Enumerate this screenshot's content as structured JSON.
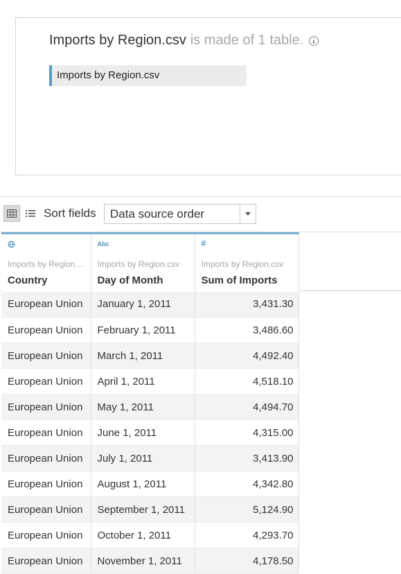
{
  "canvas": {
    "file_name": "Imports by Region.csv",
    "description_suffix": "is made of 1 table.",
    "table_chip_label": "Imports by Region.csv"
  },
  "toolbar": {
    "sort_label": "Sort fields",
    "sort_selected": "Data source order"
  },
  "grid": {
    "columns": [
      {
        "type_icon": "globe-icon",
        "source": "Imports by Region.csv",
        "name": "Country"
      },
      {
        "type_icon": "Abc",
        "source": "Imports by Region.csv",
        "name": "Day of Month"
      },
      {
        "type_icon": "#",
        "source": "Imports by Region.csv",
        "name": "Sum of Imports"
      }
    ],
    "rows": [
      [
        "European Union",
        "January 1, 2011",
        "3,431.30"
      ],
      [
        "European Union",
        "February 1, 2011",
        "3,486.60"
      ],
      [
        "European Union",
        "March 1, 2011",
        "4,492.40"
      ],
      [
        "European Union",
        "April 1, 2011",
        "4,518.10"
      ],
      [
        "European Union",
        "May 1, 2011",
        "4,494.70"
      ],
      [
        "European Union",
        "June 1, 2011",
        "4,315.00"
      ],
      [
        "European Union",
        "July 1, 2011",
        "3,413.90"
      ],
      [
        "European Union",
        "August 1, 2011",
        "4,342.80"
      ],
      [
        "European Union",
        "September 1, 2011",
        "5,124.90"
      ],
      [
        "European Union",
        "October 1, 2011",
        "4,293.70"
      ],
      [
        "European Union",
        "November 1, 2011",
        "4,178.50"
      ]
    ]
  }
}
